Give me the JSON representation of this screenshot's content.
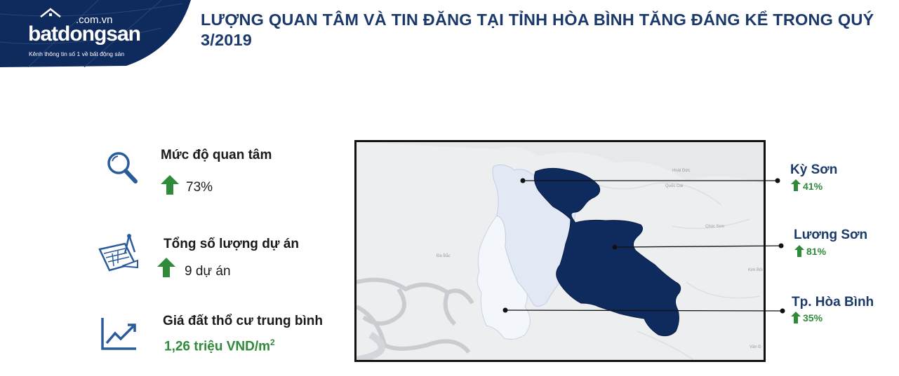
{
  "logo": {
    "domain": ".com.vn",
    "brand": "batdongsan",
    "tagline": "Kênh thông tin số 1 về bất động sản"
  },
  "title": "LƯỢNG QUAN TÂM VÀ TIN ĐĂNG TẠI TỈNH HÒA BÌNH TĂNG ĐÁNG KỂ TRONG QUÝ 3/2019",
  "metrics": [
    {
      "label": "Mức độ quan tâm",
      "value": "73%",
      "icon": "magnifier-icon"
    },
    {
      "label": "Tổng số lượng dự án",
      "value": "9 dự án",
      "icon": "blueprint-icon"
    },
    {
      "label": "Giá đất thổ cư trung bình",
      "value": "1,26 triệu VND/m",
      "unit_sup": "2",
      "icon": "line-chart-icon"
    }
  ],
  "map": {
    "place_labels": [
      "Hoài Đức",
      "Quốc Oai",
      "Chúc Sơn",
      "Đà Bắc",
      "Kim Bôi",
      "Vân Đ"
    ],
    "districts": [
      {
        "name": "Kỳ Sơn",
        "change": "41%"
      },
      {
        "name": "Lương Sơn",
        "change": "81%"
      },
      {
        "name": "Tp. Hòa Bình",
        "change": "35%"
      }
    ]
  },
  "colors": {
    "header_band": "#0f2a5c",
    "title": "#1b3a6b",
    "accent_green": "#2e8b3a",
    "region_dark": "#0f2a5c",
    "region_light": "#e2e9f4",
    "region_lighter": "#f2f5fa",
    "icon_blue": "#2a5b9a"
  }
}
